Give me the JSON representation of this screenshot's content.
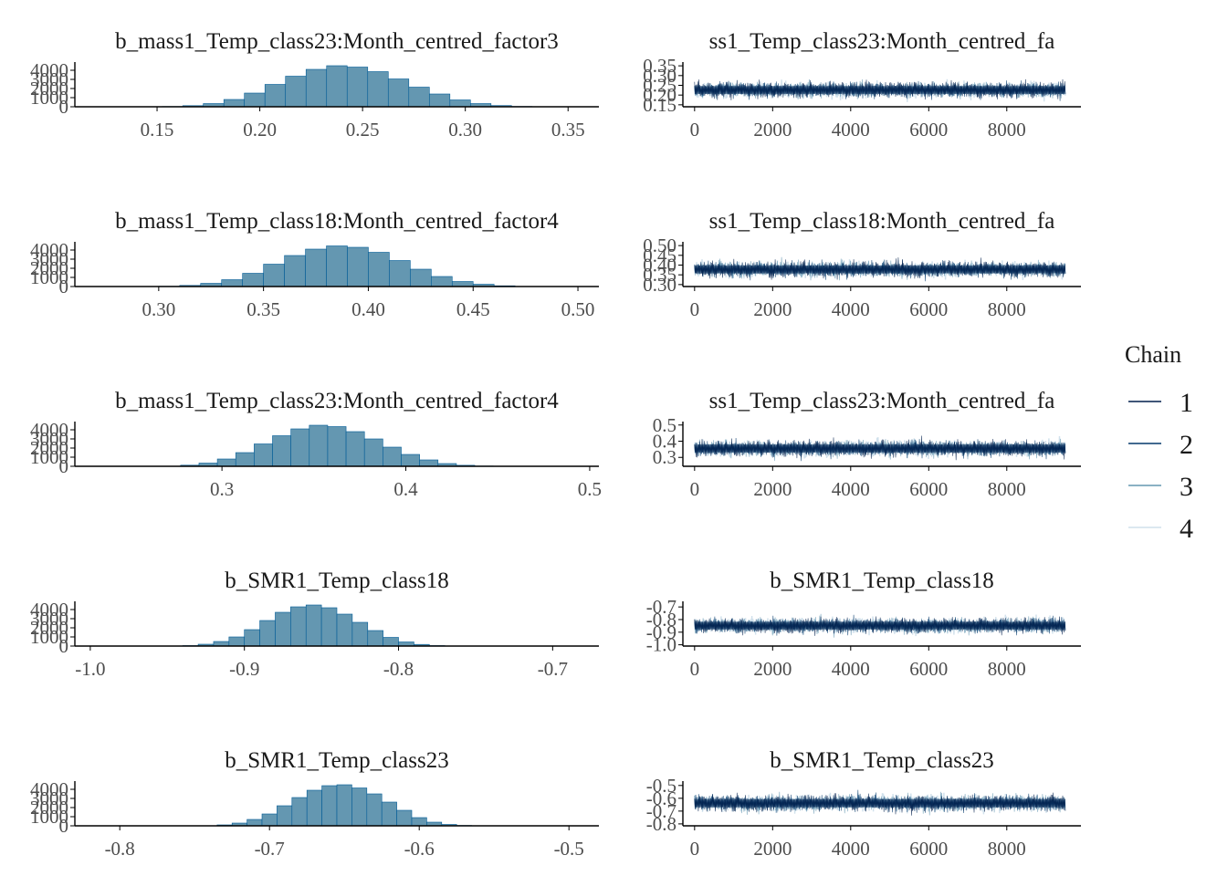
{
  "legend": {
    "title": "Chain",
    "entries": [
      {
        "label": "1",
        "color": "#011f4b"
      },
      {
        "label": "2",
        "color": "#03396c"
      },
      {
        "label": "3",
        "color": "#6497b1"
      },
      {
        "label": "4",
        "color": "#d1e1ec"
      }
    ]
  },
  "colors": {
    "hist_fill": "#6497b1",
    "hist_stroke": "#005b96",
    "axis": "#000000"
  },
  "chart_data": [
    {
      "type": "bar",
      "panel": "histogram",
      "title": "b_mass1_Temp_class23:Month_centred_factor3",
      "x_range": [
        0.11,
        0.365
      ],
      "x_ticks": [
        0.15,
        0.2,
        0.25,
        0.3,
        0.35
      ],
      "x_tick_labels": [
        "0.15",
        "0.20",
        "0.25",
        "0.30",
        "0.35"
      ],
      "y_range": [
        0,
        4700
      ],
      "y_ticks": [
        0,
        1000,
        2000,
        3000,
        4000
      ],
      "y_tick_labels": [
        "0",
        "1000",
        "2000",
        "3000",
        "4000"
      ],
      "bin_start": 0.1425,
      "bin_width": 0.01,
      "counts": [
        5,
        30,
        120,
        350,
        800,
        1500,
        2450,
        3350,
        4100,
        4500,
        4350,
        3850,
        3050,
        2150,
        1400,
        750,
        350,
        130,
        35,
        8
      ]
    },
    {
      "type": "line",
      "panel": "trace",
      "title": "ss1_Temp_class23:Month_centred_fa",
      "x_range": [
        -300,
        9900
      ],
      "x_ticks": [
        0,
        2000,
        4000,
        6000,
        8000
      ],
      "x_tick_labels": [
        "0",
        "2000",
        "4000",
        "6000",
        "8000"
      ],
      "y_range": [
        0.14,
        0.36
      ],
      "y_ticks": [
        0.15,
        0.2,
        0.25,
        0.3,
        0.35
      ],
      "y_tick_labels": [
        "0.15",
        "0.20",
        "0.25",
        "0.30",
        "0.35"
      ],
      "iterations": 9500,
      "mean": 0.226,
      "sd": 0.022
    },
    {
      "type": "bar",
      "panel": "histogram",
      "title": "b_mass1_Temp_class18:Month_centred_factor4",
      "x_range": [
        0.26,
        0.51
      ],
      "x_ticks": [
        0.3,
        0.35,
        0.4,
        0.45,
        0.5
      ],
      "x_tick_labels": [
        "0.30",
        "0.35",
        "0.40",
        "0.45",
        "0.50"
      ],
      "y_range": [
        0,
        4700
      ],
      "y_ticks": [
        0,
        1000,
        2000,
        3000,
        4000
      ],
      "y_tick_labels": [
        "0",
        "1000",
        "2000",
        "3000",
        "4000"
      ],
      "bin_start": 0.3,
      "bin_width": 0.01,
      "counts": [
        30,
        120,
        350,
        750,
        1450,
        2450,
        3400,
        4100,
        4450,
        4300,
        3750,
        2850,
        1900,
        1100,
        550,
        250,
        80,
        20
      ]
    },
    {
      "type": "line",
      "panel": "trace",
      "title": "ss1_Temp_class18:Month_centred_fa",
      "x_range": [
        -300,
        9900
      ],
      "x_ticks": [
        0,
        2000,
        4000,
        6000,
        8000
      ],
      "x_tick_labels": [
        "0",
        "2000",
        "4000",
        "6000",
        "8000"
      ],
      "y_range": [
        0.29,
        0.51
      ],
      "y_ticks": [
        0.3,
        0.35,
        0.4,
        0.45,
        0.5
      ],
      "y_tick_labels": [
        "0.30",
        "0.35",
        "0.40",
        "0.45",
        "0.50"
      ],
      "iterations": 9500,
      "mean": 0.378,
      "sd": 0.022
    },
    {
      "type": "bar",
      "panel": "histogram",
      "title": "b_mass1_Temp_class23:Month_centred_factor4",
      "x_range": [
        0.22,
        0.505
      ],
      "x_ticks": [
        0.3,
        0.4,
        0.5
      ],
      "x_tick_labels": [
        "0.3",
        "0.4",
        "0.5"
      ],
      "y_range": [
        0,
        4700
      ],
      "y_ticks": [
        0,
        1000,
        2000,
        3000,
        4000
      ],
      "y_tick_labels": [
        "0",
        "1000",
        "2000",
        "3000",
        "4000"
      ],
      "bin_start": 0.2675,
      "bin_width": 0.01,
      "counts": [
        20,
        120,
        350,
        800,
        1500,
        2450,
        3350,
        4100,
        4500,
        4350,
        3800,
        3000,
        2100,
        1300,
        700,
        300,
        110,
        30,
        8
      ]
    },
    {
      "type": "line",
      "panel": "trace",
      "title": "ss1_Temp_class23:Month_centred_fa",
      "x_range": [
        -300,
        9900
      ],
      "x_ticks": [
        0,
        2000,
        4000,
        6000,
        8000
      ],
      "x_tick_labels": [
        "0",
        "2000",
        "4000",
        "6000",
        "8000"
      ],
      "y_range": [
        0.245,
        0.51
      ],
      "y_ticks": [
        0.3,
        0.4,
        0.5
      ],
      "y_tick_labels": [
        "0.3",
        "0.4",
        "0.5"
      ],
      "iterations": 9500,
      "mean": 0.355,
      "sd": 0.027
    },
    {
      "type": "bar",
      "panel": "histogram",
      "title": "b_SMR1_Temp_class18",
      "x_range": [
        -1.01,
        -0.67
      ],
      "x_ticks": [
        -1.0,
        -0.9,
        -0.8,
        -0.7
      ],
      "x_tick_labels": [
        "-1.0",
        "-0.9",
        "-0.8",
        "-0.7"
      ],
      "y_range": [
        0,
        4700
      ],
      "y_ticks": [
        0,
        1000,
        2000,
        3000,
        4000
      ],
      "y_tick_labels": [
        "0",
        "1000",
        "2000",
        "3000",
        "4000"
      ],
      "bin_start": -0.94,
      "bin_width": 0.01,
      "counts": [
        50,
        200,
        500,
        1000,
        1800,
        2800,
        3700,
        4300,
        4500,
        4200,
        3500,
        2600,
        1700,
        950,
        450,
        180,
        50,
        12
      ]
    },
    {
      "type": "line",
      "panel": "trace",
      "title": "b_SMR1_Temp_class18",
      "x_range": [
        -300,
        9900
      ],
      "x_ticks": [
        0,
        2000,
        4000,
        6000,
        8000
      ],
      "x_tick_labels": [
        "0",
        "2000",
        "4000",
        "6000",
        "8000"
      ],
      "y_range": [
        -1.01,
        -0.67
      ],
      "y_ticks": [
        -1.0,
        -0.9,
        -0.8,
        -0.7
      ],
      "y_tick_labels": [
        "-1.0",
        "-0.9",
        "-0.8",
        "-0.7"
      ],
      "iterations": 9500,
      "mean": -0.848,
      "sd": 0.033
    },
    {
      "type": "bar",
      "panel": "histogram",
      "title": "b_SMR1_Temp_class23",
      "x_range": [
        -0.83,
        -0.48
      ],
      "x_ticks": [
        -0.8,
        -0.7,
        -0.6,
        -0.5
      ],
      "x_tick_labels": [
        "-0.8",
        "-0.7",
        "-0.6",
        "-0.5"
      ],
      "y_range": [
        0,
        4700
      ],
      "y_ticks": [
        0,
        1000,
        2000,
        3000,
        4000
      ],
      "y_tick_labels": [
        "0",
        "1000",
        "2000",
        "3000",
        "4000"
      ],
      "bin_start": -0.745,
      "bin_width": 0.01,
      "counts": [
        20,
        100,
        300,
        700,
        1300,
        2200,
        3100,
        3900,
        4400,
        4500,
        4150,
        3500,
        2600,
        1700,
        900,
        400,
        150,
        40
      ]
    },
    {
      "type": "line",
      "panel": "trace",
      "title": "b_SMR1_Temp_class23",
      "x_range": [
        -300,
        9900
      ],
      "x_ticks": [
        0,
        2000,
        4000,
        6000,
        8000
      ],
      "x_tick_labels": [
        "0",
        "2000",
        "4000",
        "6000",
        "8000"
      ],
      "y_range": [
        -0.815,
        -0.48
      ],
      "y_ticks": [
        -0.8,
        -0.7,
        -0.6,
        -0.5
      ],
      "y_tick_labels": [
        "-0.8",
        "-0.7",
        "-0.6",
        "-0.5"
      ],
      "iterations": 9500,
      "mean": -0.638,
      "sd": 0.035
    }
  ]
}
